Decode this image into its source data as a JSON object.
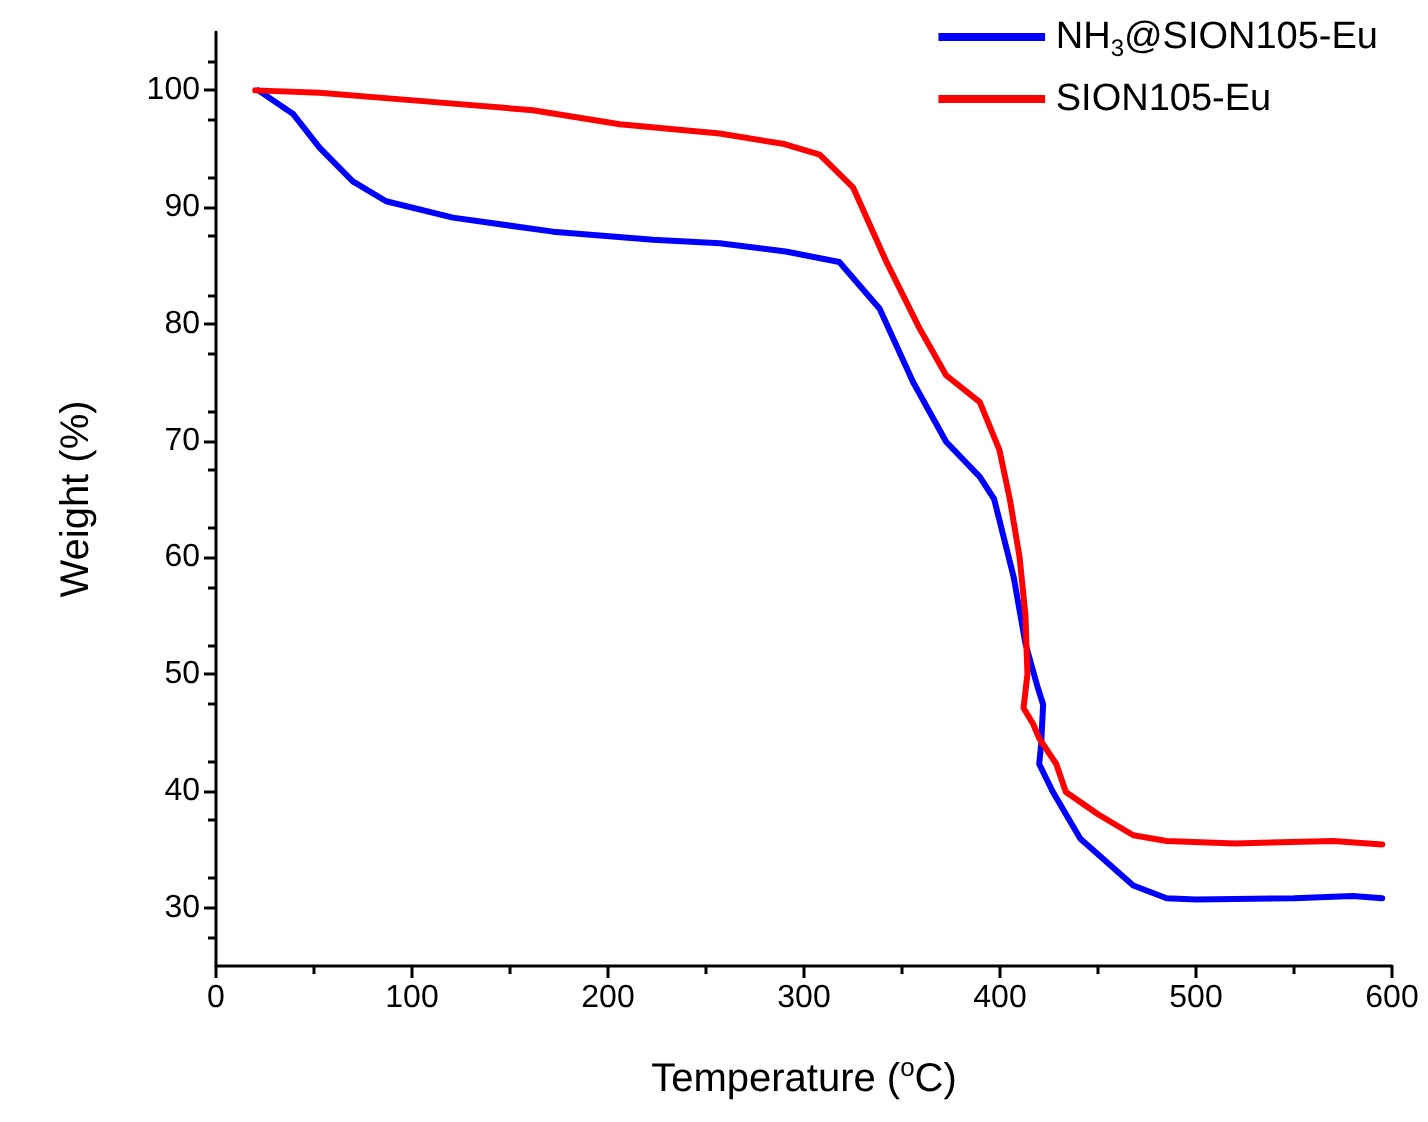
{
  "chart_data": {
    "type": "line",
    "xlabel": "Temperature ($^{o}$C)",
    "ylabel": "Weight (%)",
    "xlim": [
      0,
      600
    ],
    "xticks": [
      0,
      100,
      200,
      300,
      400,
      500,
      600
    ],
    "ylim": [
      25,
      105
    ],
    "yticks": [
      30,
      40,
      50,
      60,
      70,
      80,
      90,
      100
    ],
    "grid": false,
    "legend": "top right",
    "marker": "none",
    "line_style": "solid",
    "series": [
      {
        "name": "NH$_{3}$@SION105-Eu",
        "color": "#0000ff",
        "x": [
          21.6,
          39.2,
          52.8,
          69.8,
          86.8,
          120.9,
          171.9,
          223,
          257,
          290.7,
          318,
          338.6,
          355.7,
          372.5,
          389.7,
          397,
          407,
          413,
          419,
          422,
          421,
          420,
          427,
          441,
          468,
          485,
          500,
          550,
          580,
          595
        ],
        "values": [
          100,
          98,
          95.1,
          92.2,
          90.5,
          89.1,
          87.9,
          87.2,
          86.9,
          86.2,
          85.3,
          81.3,
          75,
          69.9,
          66.9,
          65,
          58.3,
          52.6,
          49,
          47.4,
          44,
          42.3,
          39.9,
          35.9,
          31.9,
          30.8,
          30.7,
          30.8,
          31,
          30.8
        ]
      },
      {
        "name": "SION105-Eu",
        "color": "#ff0000",
        "x": [
          20,
          52.8,
          103.8,
          161.7,
          206,
          257,
          290,
          308,
          325,
          341.8,
          359,
          372.5,
          389.7,
          399.7,
          405,
          410,
          413,
          414,
          412,
          417,
          420,
          428.7,
          433.6,
          450,
          468,
          485,
          520,
          570,
          595
        ],
        "values": [
          100,
          99.8,
          99.1,
          98.3,
          97.1,
          96.3,
          95.4,
          94.5,
          91.7,
          85.4,
          79.6,
          75.6,
          73.3,
          69.2,
          65,
          60,
          55,
          50,
          47.1,
          45.7,
          44.5,
          42.3,
          39.9,
          38,
          36.2,
          35.7,
          35.5,
          35.7,
          35.4
        ]
      }
    ]
  }
}
